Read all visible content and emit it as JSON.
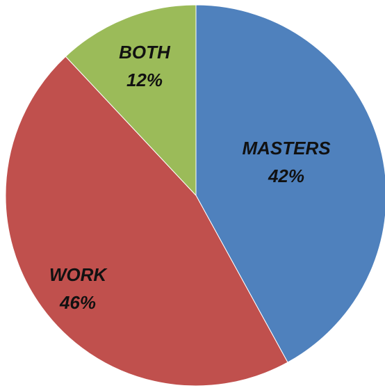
{
  "chart_data": {
    "type": "pie",
    "title": "",
    "start_angle_deg": 0,
    "direction": "clockwise",
    "legend": "none",
    "slices": [
      {
        "label": "MASTERS",
        "value": 42,
        "value_label": "42%",
        "color": "#4f81bd"
      },
      {
        "label": "WORK",
        "value": 46,
        "value_label": "46%",
        "color": "#c0504d"
      },
      {
        "label": "BOTH",
        "value": 12,
        "value_label": "12%",
        "color": "#9bbb59"
      }
    ]
  }
}
